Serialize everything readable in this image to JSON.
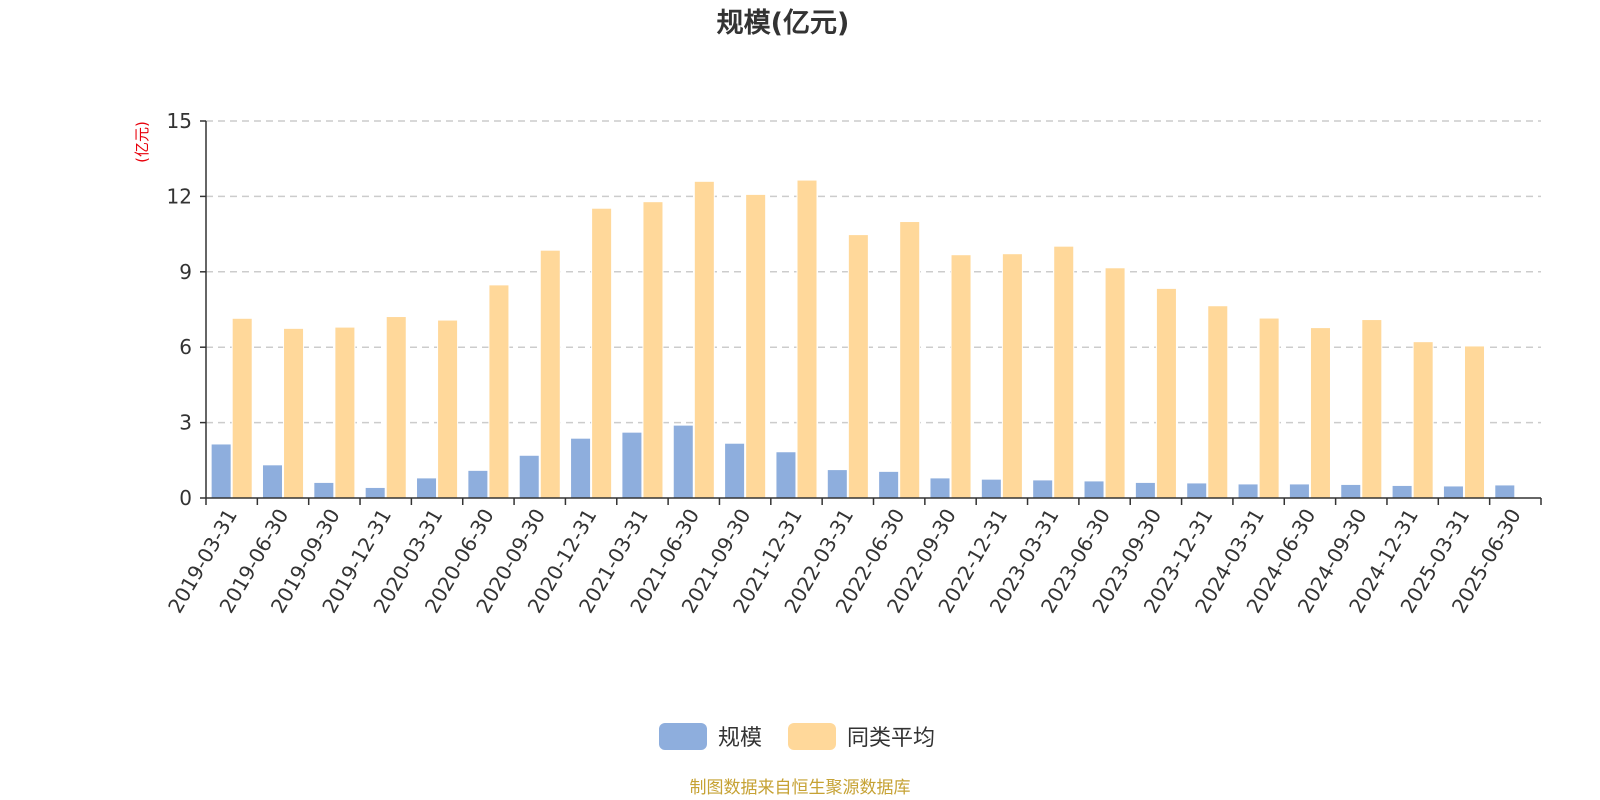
{
  "chart_data": {
    "type": "bar",
    "title": "规模(亿元)",
    "ylabel": "(亿元)",
    "ylim": [
      0,
      15
    ],
    "yticks": [
      0,
      3,
      6,
      9,
      12,
      15
    ],
    "grid": true,
    "legend_position": "bottom-center",
    "categories": [
      "2019-03-31",
      "2019-06-30",
      "2019-09-30",
      "2019-12-31",
      "2020-03-31",
      "2020-06-30",
      "2020-09-30",
      "2020-12-31",
      "2021-03-31",
      "2021-06-30",
      "2021-09-30",
      "2021-12-31",
      "2022-03-31",
      "2022-06-30",
      "2022-09-30",
      "2022-12-31",
      "2023-03-31",
      "2023-06-30",
      "2023-09-30",
      "2023-12-31",
      "2024-03-31",
      "2024-06-30",
      "2024-09-30",
      "2024-12-31",
      "2025-03-31",
      "2025-06-30"
    ],
    "series": [
      {
        "name": "规模",
        "color": "#8eaedd",
        "values": [
          2.15,
          1.32,
          0.62,
          0.42,
          0.8,
          1.1,
          1.7,
          2.38,
          2.62,
          2.9,
          2.18,
          1.84,
          1.13,
          1.06,
          0.8,
          0.75,
          0.72,
          0.68,
          0.62,
          0.6,
          0.56,
          0.56,
          0.54,
          0.5,
          0.48,
          0.52
        ]
      },
      {
        "name": "同类平均",
        "color": "#ffd89a",
        "values": [
          7.15,
          6.75,
          6.8,
          7.22,
          7.08,
          8.48,
          9.86,
          11.53,
          11.79,
          12.6,
          12.08,
          12.65,
          10.48,
          11.0,
          9.68,
          9.72,
          10.02,
          9.16,
          8.34,
          7.65,
          7.16,
          6.78,
          7.1,
          6.22,
          6.05,
          null
        ]
      }
    ]
  },
  "source": "制图数据来自恒生聚源数据库"
}
